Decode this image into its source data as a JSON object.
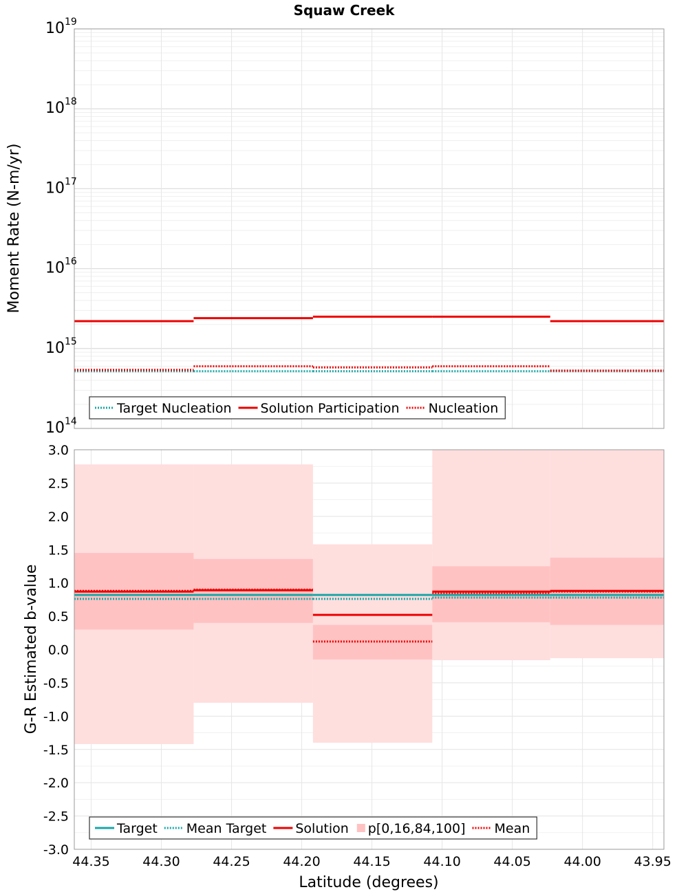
{
  "title": "Squaw Creek",
  "xlabel": "Latitude (degrees)",
  "x_ticks": [
    44.35,
    44.3,
    44.25,
    44.2,
    44.15,
    44.1,
    44.05,
    44.0,
    43.95
  ],
  "x_tick_labels": [
    "44.35",
    "44.30",
    "44.25",
    "44.20",
    "44.15",
    "44.10",
    "44.05",
    "44.00",
    "43.95"
  ],
  "chart_data": [
    {
      "type": "line",
      "panel": "moment-rate",
      "ylabel": "Moment Rate (N-m/yr)",
      "yscale": "log",
      "ylim": [
        100000000000000.0,
        1e+19
      ],
      "xlim": [
        44.362,
        43.942
      ],
      "x_reversed": true,
      "y_ticks": [
        {
          "base": "10",
          "exp": "14",
          "value": 100000000000000.0
        },
        {
          "base": "10",
          "exp": "15",
          "value": 1000000000000000.0
        },
        {
          "base": "10",
          "exp": "16",
          "value": 1e+16
        },
        {
          "base": "10",
          "exp": "17",
          "value": 1e+17
        },
        {
          "base": "10",
          "exp": "18",
          "value": 1e+18
        },
        {
          "base": "10",
          "exp": "19",
          "value": 1e+19
        }
      ],
      "bins": [
        [
          44.362,
          44.277
        ],
        [
          44.277,
          44.192
        ],
        [
          44.192,
          44.107
        ],
        [
          44.107,
          44.023
        ],
        [
          44.023,
          43.942
        ]
      ],
      "series": [
        {
          "name": "Target Nucleation",
          "color": "#1aa6a6",
          "style": "dotted",
          "values": [
            520000000000000.0,
            520000000000000.0,
            520000000000000.0,
            520000000000000.0,
            520000000000000.0
          ]
        },
        {
          "name": "Solution Participation",
          "color": "#ee0000",
          "style": "solid",
          "values": [
            2200000000000000.0,
            2400000000000000.0,
            2500000000000000.0,
            2500000000000000.0,
            2200000000000000.0
          ]
        },
        {
          "name": "Nucleation",
          "color": "#ee0000",
          "style": "dotted",
          "values": [
            540000000000000.0,
            600000000000000.0,
            580000000000000.0,
            600000000000000.0,
            530000000000000.0
          ]
        }
      ],
      "legend_position": "bottom-left",
      "grid": true
    },
    {
      "type": "line",
      "panel": "b-value",
      "ylabel": "G-R Estimated b-value",
      "ylim": [
        -3.0,
        3.0
      ],
      "xlim": [
        44.362,
        43.942
      ],
      "x_reversed": true,
      "y_ticks": [
        3.0,
        2.5,
        2.0,
        1.5,
        1.0,
        0.5,
        0.0,
        -0.5,
        -1.0,
        -1.5,
        -2.0,
        -2.5,
        -3.0
      ],
      "y_tick_labels": [
        "3.0",
        "2.5",
        "2.0",
        "1.5",
        "1.0",
        "0.5",
        "0.0",
        "-0.5",
        "-1.0",
        "-1.5",
        "-2.0",
        "-2.5",
        "-3.0"
      ],
      "bins": [
        [
          44.362,
          44.277
        ],
        [
          44.277,
          44.192
        ],
        [
          44.192,
          44.107
        ],
        [
          44.107,
          44.023
        ],
        [
          44.023,
          43.942
        ]
      ],
      "percentile_band": {
        "name": "p[0,16,84,100]",
        "outer_color": "#ffdede",
        "inner_color": "#ffc2c2",
        "p0": [
          -1.42,
          -0.8,
          -1.4,
          -0.16,
          -0.13
        ],
        "p16": [
          0.3,
          0.4,
          -0.15,
          0.41,
          0.37
        ],
        "p84": [
          1.45,
          1.36,
          0.37,
          1.25,
          1.38
        ],
        "p100": [
          2.78,
          2.78,
          1.58,
          3.0,
          3.0
        ]
      },
      "series": [
        {
          "name": "Target",
          "color": "#1aa6a6",
          "style": "solid",
          "values": [
            0.82,
            0.82,
            0.82,
            0.82,
            0.82
          ]
        },
        {
          "name": "Mean Target",
          "color": "#1aa6a6",
          "style": "dotted",
          "values": [
            0.76,
            0.76,
            0.76,
            0.78,
            0.78
          ]
        },
        {
          "name": "Solution",
          "color": "#ee0000",
          "style": "solid",
          "values": [
            0.87,
            0.89,
            0.52,
            0.87,
            0.88
          ]
        },
        {
          "name": "Mean",
          "color": "#ee0000",
          "style": "dotted",
          "values": [
            0.88,
            0.9,
            0.12,
            0.85,
            0.87
          ]
        }
      ],
      "legend_order": [
        "Target",
        "Mean Target",
        "Solution",
        "p[0,16,84,100]",
        "Mean"
      ],
      "legend_position": "bottom-left",
      "grid": true
    }
  ]
}
